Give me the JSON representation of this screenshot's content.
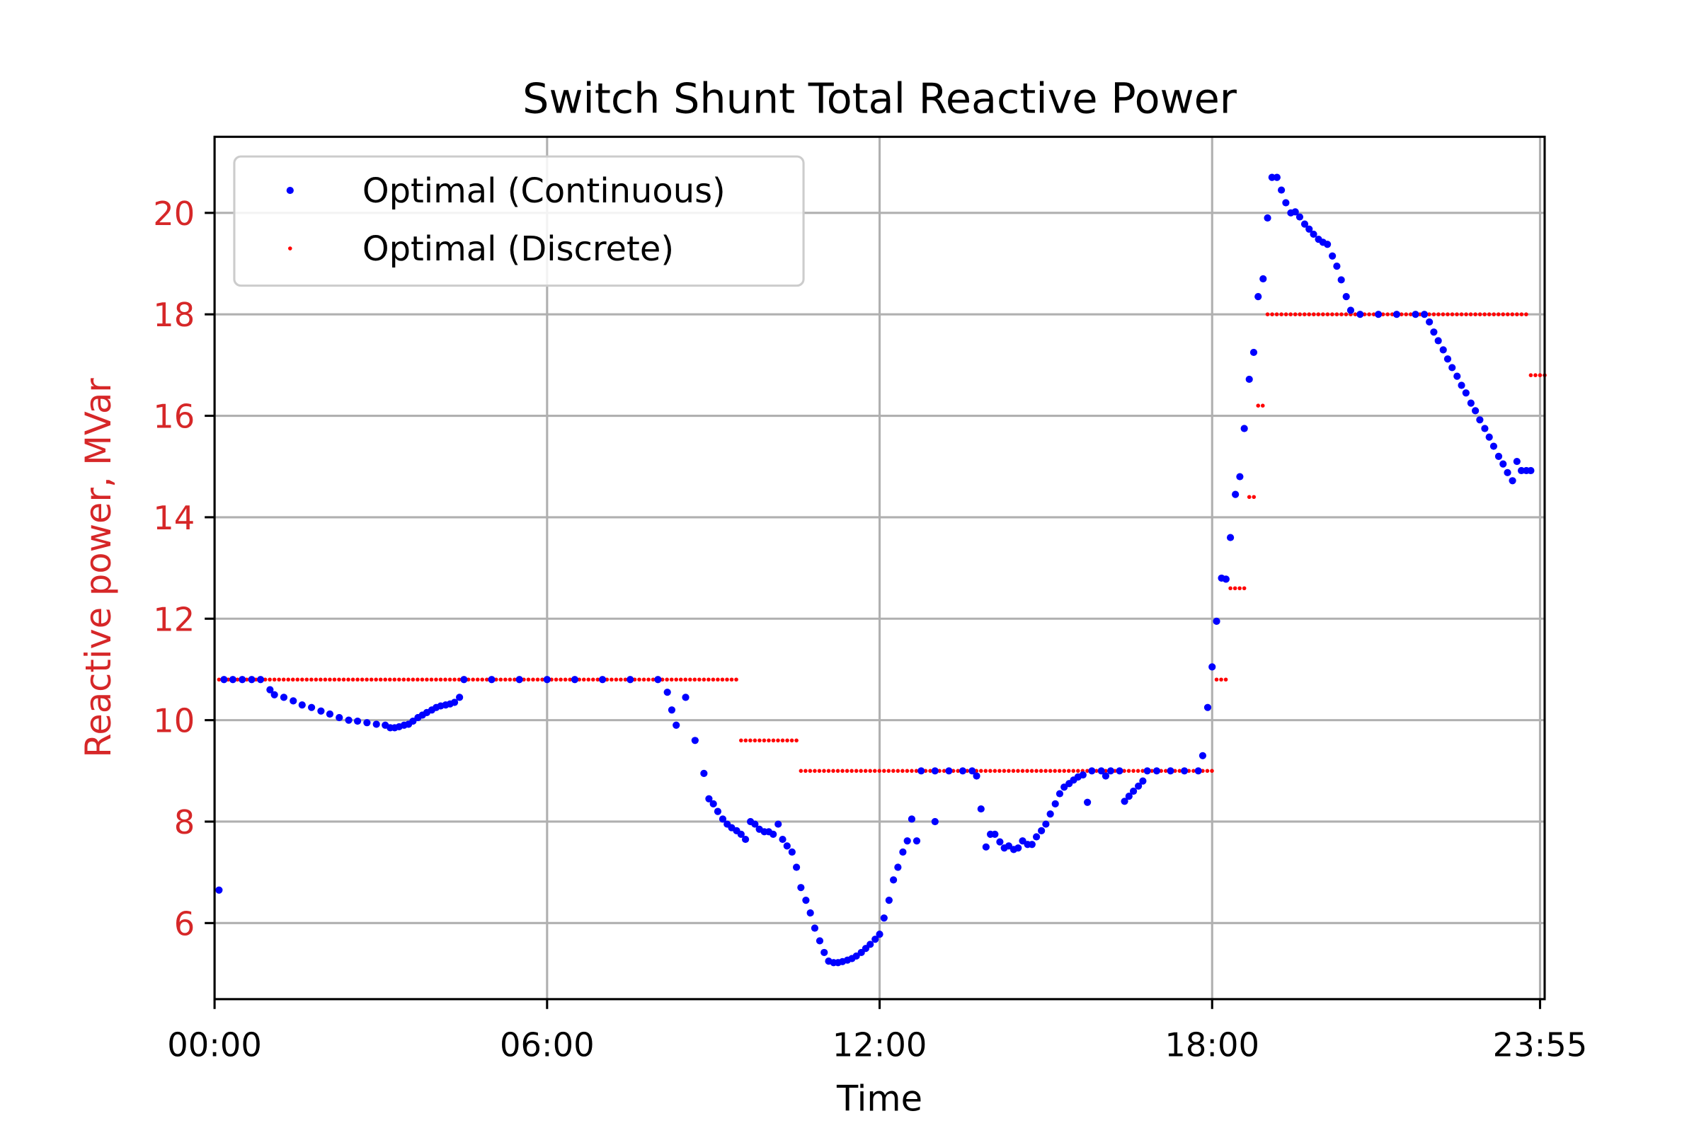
{
  "chart_data": {
    "type": "scatter",
    "title": "Switch Shunt Total Reactive Power",
    "xlabel": "Time",
    "ylabel": "Reactive power, MVar",
    "x_unit": "hours",
    "xlim": [
      0,
      24
    ],
    "ylim": [
      4.5,
      21.5
    ],
    "x_ticks": [
      {
        "value": 0,
        "label": "00:00"
      },
      {
        "value": 6,
        "label": "06:00"
      },
      {
        "value": 12,
        "label": "12:00"
      },
      {
        "value": 18,
        "label": "18:00"
      },
      {
        "value": 23.917,
        "label": "23:55"
      }
    ],
    "y_ticks": [
      {
        "value": 6,
        "label": "6"
      },
      {
        "value": 8,
        "label": "8"
      },
      {
        "value": 10,
        "label": "10"
      },
      {
        "value": 12,
        "label": "12"
      },
      {
        "value": 14,
        "label": "14"
      },
      {
        "value": 16,
        "label": "16"
      },
      {
        "value": 18,
        "label": "18"
      },
      {
        "value": 20,
        "label": "20"
      }
    ],
    "grid": true,
    "legend_position": "upper-left",
    "colors": {
      "continuous": "#0000ff",
      "discrete": "#ff0000",
      "ylabel": "#d62728",
      "grid": "#b0b0b0"
    },
    "series": [
      {
        "name": "Optimal (Continuous)",
        "marker": "dot-large",
        "points": [
          [
            0.08,
            6.65
          ],
          [
            0.17,
            10.8
          ],
          [
            0.33,
            10.8
          ],
          [
            0.5,
            10.8
          ],
          [
            0.67,
            10.8
          ],
          [
            0.83,
            10.8
          ],
          [
            1.0,
            10.6
          ],
          [
            1.08,
            10.5
          ],
          [
            1.25,
            10.45
          ],
          [
            1.42,
            10.38
          ],
          [
            1.58,
            10.3
          ],
          [
            1.75,
            10.25
          ],
          [
            1.92,
            10.18
          ],
          [
            2.08,
            10.12
          ],
          [
            2.25,
            10.05
          ],
          [
            2.42,
            10.0
          ],
          [
            2.58,
            9.98
          ],
          [
            2.75,
            9.95
          ],
          [
            2.92,
            9.92
          ],
          [
            3.08,
            9.9
          ],
          [
            3.17,
            9.85
          ],
          [
            3.25,
            9.85
          ],
          [
            3.33,
            9.87
          ],
          [
            3.42,
            9.9
          ],
          [
            3.5,
            9.92
          ],
          [
            3.58,
            9.98
          ],
          [
            3.67,
            10.05
          ],
          [
            3.75,
            10.1
          ],
          [
            3.83,
            10.15
          ],
          [
            3.92,
            10.2
          ],
          [
            4.0,
            10.25
          ],
          [
            4.08,
            10.28
          ],
          [
            4.17,
            10.3
          ],
          [
            4.25,
            10.32
          ],
          [
            4.33,
            10.35
          ],
          [
            4.42,
            10.45
          ],
          [
            4.5,
            10.8
          ],
          [
            5.0,
            10.8
          ],
          [
            5.5,
            10.8
          ],
          [
            6.0,
            10.8
          ],
          [
            6.5,
            10.8
          ],
          [
            7.0,
            10.8
          ],
          [
            7.5,
            10.8
          ],
          [
            8.0,
            10.8
          ],
          [
            8.17,
            10.55
          ],
          [
            8.25,
            10.2
          ],
          [
            8.33,
            9.9
          ],
          [
            8.5,
            10.45
          ],
          [
            8.67,
            9.6
          ],
          [
            8.83,
            8.95
          ],
          [
            8.92,
            8.45
          ],
          [
            9.0,
            8.35
          ],
          [
            9.08,
            8.2
          ],
          [
            9.17,
            8.05
          ],
          [
            9.25,
            7.95
          ],
          [
            9.33,
            7.88
          ],
          [
            9.42,
            7.82
          ],
          [
            9.5,
            7.75
          ],
          [
            9.58,
            7.65
          ],
          [
            9.67,
            8.0
          ],
          [
            9.75,
            7.95
          ],
          [
            9.83,
            7.85
          ],
          [
            9.92,
            7.8
          ],
          [
            10.0,
            7.8
          ],
          [
            10.08,
            7.75
          ],
          [
            10.17,
            7.95
          ],
          [
            10.25,
            7.65
          ],
          [
            10.33,
            7.52
          ],
          [
            10.42,
            7.4
          ],
          [
            10.5,
            7.1
          ],
          [
            10.58,
            6.7
          ],
          [
            10.67,
            6.45
          ],
          [
            10.75,
            6.2
          ],
          [
            10.83,
            5.9
          ],
          [
            10.92,
            5.65
          ],
          [
            11.0,
            5.42
          ],
          [
            11.08,
            5.25
          ],
          [
            11.17,
            5.22
          ],
          [
            11.25,
            5.22
          ],
          [
            11.33,
            5.24
          ],
          [
            11.42,
            5.27
          ],
          [
            11.5,
            5.3
          ],
          [
            11.58,
            5.35
          ],
          [
            11.67,
            5.42
          ],
          [
            11.75,
            5.5
          ],
          [
            11.83,
            5.58
          ],
          [
            11.92,
            5.68
          ],
          [
            12.0,
            5.78
          ],
          [
            12.08,
            6.1
          ],
          [
            12.17,
            6.45
          ],
          [
            12.25,
            6.85
          ],
          [
            12.33,
            7.1
          ],
          [
            12.42,
            7.4
          ],
          [
            12.5,
            7.62
          ],
          [
            12.58,
            8.05
          ],
          [
            12.67,
            7.62
          ],
          [
            12.75,
            9.0
          ],
          [
            13.0,
            9.0
          ],
          [
            13.0,
            8.0
          ],
          [
            13.25,
            9.0
          ],
          [
            13.5,
            9.0
          ],
          [
            13.67,
            9.0
          ],
          [
            13.75,
            8.9
          ],
          [
            13.83,
            8.25
          ],
          [
            13.92,
            7.5
          ],
          [
            14.0,
            7.75
          ],
          [
            14.08,
            7.75
          ],
          [
            14.17,
            7.6
          ],
          [
            14.25,
            7.48
          ],
          [
            14.33,
            7.52
          ],
          [
            14.42,
            7.45
          ],
          [
            14.5,
            7.48
          ],
          [
            14.58,
            7.62
          ],
          [
            14.67,
            7.55
          ],
          [
            14.75,
            7.55
          ],
          [
            14.83,
            7.7
          ],
          [
            14.92,
            7.82
          ],
          [
            15.0,
            7.95
          ],
          [
            15.08,
            8.15
          ],
          [
            15.17,
            8.35
          ],
          [
            15.25,
            8.55
          ],
          [
            15.33,
            8.68
          ],
          [
            15.42,
            8.75
          ],
          [
            15.5,
            8.82
          ],
          [
            15.58,
            8.88
          ],
          [
            15.67,
            8.92
          ],
          [
            15.75,
            8.38
          ],
          [
            15.83,
            9.0
          ],
          [
            16.0,
            9.0
          ],
          [
            16.08,
            8.9
          ],
          [
            16.17,
            9.0
          ],
          [
            16.33,
            9.0
          ],
          [
            16.42,
            8.4
          ],
          [
            16.5,
            8.5
          ],
          [
            16.58,
            8.6
          ],
          [
            16.67,
            8.7
          ],
          [
            16.75,
            8.8
          ],
          [
            16.83,
            9.0
          ],
          [
            17.0,
            9.0
          ],
          [
            17.25,
            9.0
          ],
          [
            17.5,
            9.0
          ],
          [
            17.75,
            9.0
          ],
          [
            17.83,
            9.3
          ],
          [
            17.92,
            10.25
          ],
          [
            18.0,
            11.05
          ],
          [
            18.08,
            11.95
          ],
          [
            18.17,
            12.8
          ],
          [
            18.25,
            12.78
          ],
          [
            18.33,
            13.6
          ],
          [
            18.42,
            14.45
          ],
          [
            18.5,
            14.8
          ],
          [
            18.58,
            15.75
          ],
          [
            18.67,
            16.72
          ],
          [
            18.75,
            17.25
          ],
          [
            18.83,
            18.35
          ],
          [
            18.92,
            18.7
          ],
          [
            19.0,
            19.9
          ],
          [
            19.08,
            20.7
          ],
          [
            19.17,
            20.7
          ],
          [
            19.25,
            20.45
          ],
          [
            19.33,
            20.2
          ],
          [
            19.42,
            20.0
          ],
          [
            19.5,
            20.02
          ],
          [
            19.58,
            19.92
          ],
          [
            19.67,
            19.78
          ],
          [
            19.75,
            19.68
          ],
          [
            19.83,
            19.58
          ],
          [
            19.92,
            19.48
          ],
          [
            20.0,
            19.42
          ],
          [
            20.08,
            19.38
          ],
          [
            20.17,
            19.15
          ],
          [
            20.25,
            18.95
          ],
          [
            20.33,
            18.68
          ],
          [
            20.42,
            18.35
          ],
          [
            20.5,
            18.08
          ],
          [
            20.67,
            18.0
          ],
          [
            21.0,
            18.0
          ],
          [
            21.33,
            18.0
          ],
          [
            21.67,
            18.0
          ],
          [
            21.83,
            18.0
          ],
          [
            21.92,
            17.85
          ],
          [
            22.0,
            17.65
          ],
          [
            22.08,
            17.48
          ],
          [
            22.17,
            17.3
          ],
          [
            22.25,
            17.12
          ],
          [
            22.33,
            16.95
          ],
          [
            22.42,
            16.78
          ],
          [
            22.5,
            16.6
          ],
          [
            22.58,
            16.45
          ],
          [
            22.67,
            16.25
          ],
          [
            22.75,
            16.1
          ],
          [
            22.83,
            15.92
          ],
          [
            22.92,
            15.75
          ],
          [
            23.0,
            15.58
          ],
          [
            23.08,
            15.4
          ],
          [
            23.17,
            15.2
          ],
          [
            23.25,
            15.05
          ],
          [
            23.33,
            14.88
          ],
          [
            23.42,
            14.72
          ],
          [
            23.5,
            15.1
          ],
          [
            23.58,
            14.92
          ],
          [
            23.67,
            14.92
          ],
          [
            23.75,
            14.92
          ]
        ]
      },
      {
        "name": "Optimal (Discrete)",
        "marker": "dot-small",
        "segments": [
          {
            "x_start": 0.08,
            "x_end": 9.42,
            "y": 10.8
          },
          {
            "x_start": 9.5,
            "x_end": 10.5,
            "y": 9.6
          },
          {
            "x_start": 10.58,
            "x_end": 18.0,
            "y": 9.0
          },
          {
            "x_start": 18.08,
            "x_end": 18.25,
            "y": 10.8
          },
          {
            "x_start": 18.33,
            "x_end": 18.58,
            "y": 12.6
          },
          {
            "x_start": 18.67,
            "x_end": 18.83,
            "y": 14.4
          },
          {
            "x_start": 18.83,
            "x_end": 18.92,
            "y": 16.2
          },
          {
            "x_start": 19.0,
            "x_end": 23.67,
            "y": 18.0
          },
          {
            "x_start": 23.75,
            "x_end": 24.0,
            "y": 16.8
          }
        ]
      }
    ]
  }
}
